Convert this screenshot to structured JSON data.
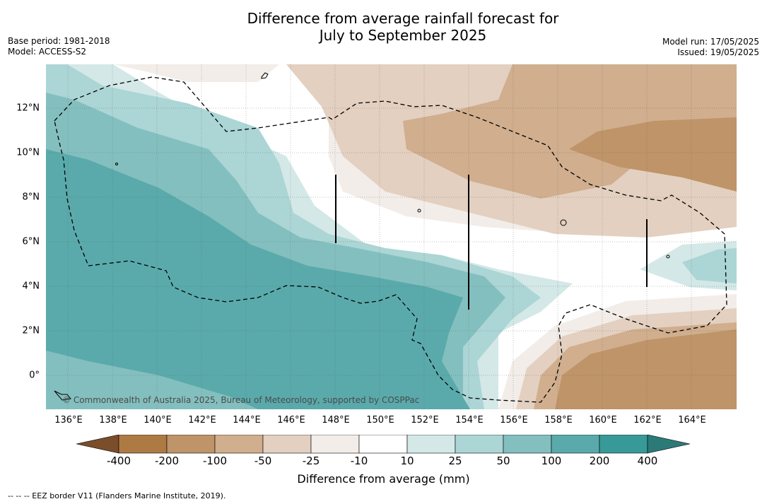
{
  "title_line1": "Difference from average rainfall forecast for",
  "title_line2": "July to September 2025",
  "meta_left": {
    "base_period": "Base period: 1981-2018",
    "model": "Model: ACCESS-S2"
  },
  "meta_right": {
    "model_run": "Model run: 17/05/2025",
    "issued": "Issued: 19/05/2025"
  },
  "copyright": "© Commonwealth of Australia 2025, Bureau of Meteorology, supported by COSPPac",
  "x_ticks": [
    "136°E",
    "138°E",
    "140°E",
    "142°E",
    "144°E",
    "146°E",
    "148°E",
    "150°E",
    "152°E",
    "154°E",
    "156°E",
    "158°E",
    "160°E",
    "162°E",
    "164°E"
  ],
  "y_ticks": [
    "12°N",
    "10°N",
    "8°N",
    "6°N",
    "4°N",
    "2°N",
    "0°"
  ],
  "colorbar": {
    "title": "Difference from average (mm)",
    "tick_labels": [
      "-400",
      "-200",
      "-100",
      "-50",
      "-25",
      "-10",
      "10",
      "25",
      "50",
      "100",
      "200",
      "400"
    ],
    "colors": [
      "#7a4e2a",
      "#ae7a44",
      "#bf9469",
      "#d0ae8e",
      "#e3d0c0",
      "#f2ede8",
      "#ffffff",
      "#d3e8e7",
      "#acd5d5",
      "#84bfbf",
      "#5aaaab",
      "#379a98",
      "#2b7a78"
    ]
  },
  "footnote": "--  --  -- EEZ border V11 (Flanders Marine Institute, 2019)."
}
